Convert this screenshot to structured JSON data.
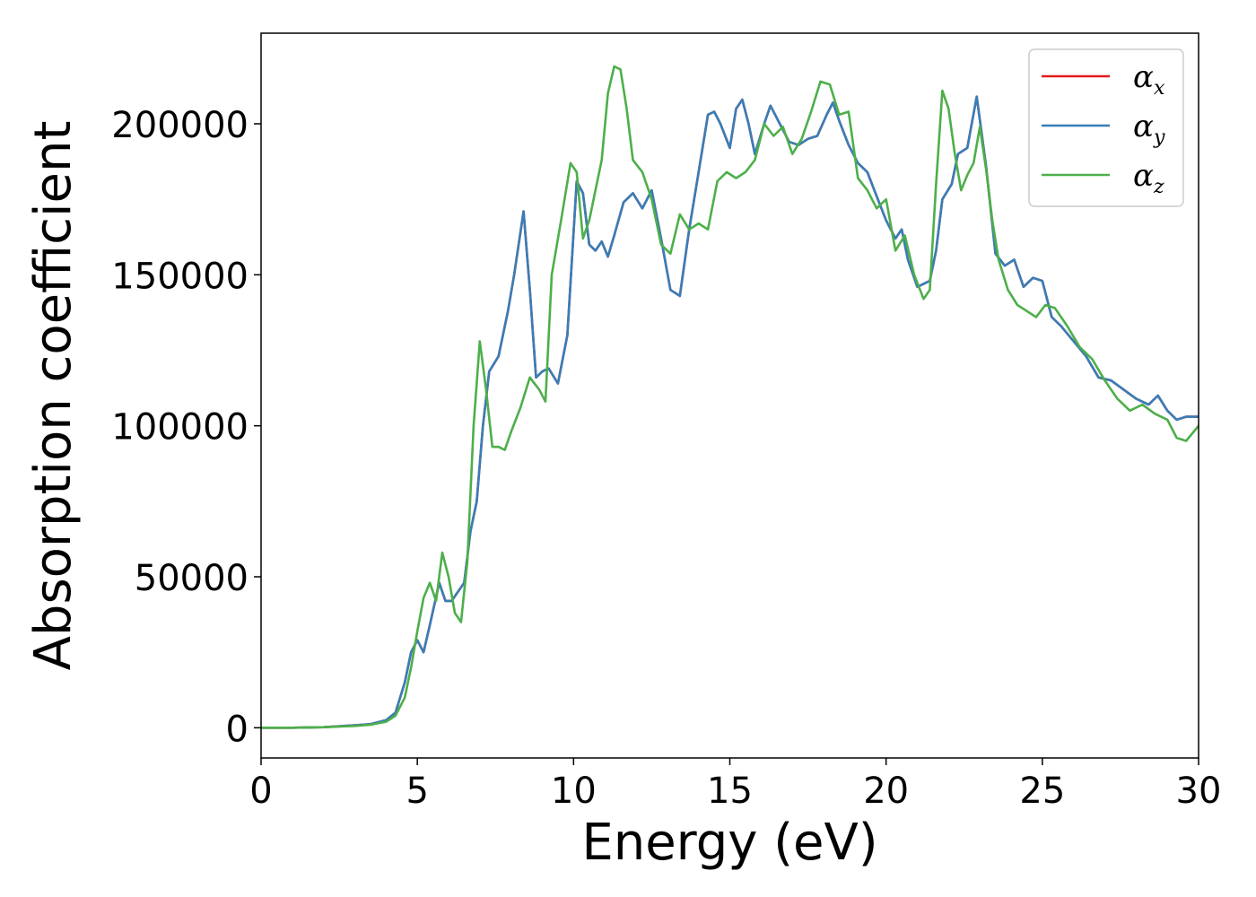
{
  "chart_data": {
    "type": "line",
    "xlabel": "Energy (eV)",
    "ylabel": "Absorption coefficient",
    "xlim": [
      0,
      30
    ],
    "ylim": [
      -10000,
      230000
    ],
    "x_ticks": [
      0,
      5,
      10,
      15,
      20,
      25,
      30
    ],
    "x_tick_labels": [
      "0",
      "5",
      "10",
      "15",
      "20",
      "25",
      "30"
    ],
    "y_ticks": [
      0,
      50000,
      100000,
      150000,
      200000
    ],
    "y_tick_labels": [
      "0",
      "50000",
      "100000",
      "150000",
      "200000"
    ],
    "grid": false,
    "legend_position": "top-right",
    "series": [
      {
        "name": "α",
        "subscript": "x",
        "color": "#e41a1c",
        "x": [
          0,
          1,
          2,
          3,
          3.5,
          4,
          4.3,
          4.6,
          4.8,
          5.0,
          5.2,
          5.4,
          5.7,
          5.9,
          6.1,
          6.3,
          6.5,
          6.7,
          6.9,
          7.1,
          7.3,
          7.6,
          7.9,
          8.1,
          8.4,
          8.6,
          8.8,
          9.0,
          9.2,
          9.5,
          9.8,
          10.1,
          10.3,
          10.5,
          10.7,
          10.9,
          11.1,
          11.3,
          11.6,
          11.9,
          12.2,
          12.5,
          12.8,
          13.1,
          13.4,
          13.7,
          14.0,
          14.3,
          14.5,
          14.7,
          15.0,
          15.2,
          15.4,
          15.6,
          15.8,
          16.1,
          16.3,
          16.6,
          16.9,
          17.2,
          17.5,
          17.8,
          18.1,
          18.3,
          18.5,
          18.8,
          19.1,
          19.4,
          19.7,
          20.0,
          20.3,
          20.5,
          20.7,
          21.0,
          21.2,
          21.4,
          21.6,
          21.8,
          22.1,
          22.3,
          22.6,
          22.9,
          23.2,
          23.5,
          23.8,
          24.1,
          24.4,
          24.7,
          25.0,
          25.3,
          25.6,
          26.0,
          26.4,
          26.8,
          27.2,
          27.6,
          28.0,
          28.4,
          28.7,
          29.0,
          29.3,
          29.6,
          30.0
        ],
        "y": [
          0,
          0,
          200,
          800,
          1200,
          2500,
          5000,
          15000,
          25000,
          29000,
          25000,
          34000,
          48000,
          42000,
          42000,
          45000,
          48000,
          65000,
          75000,
          100000,
          118000,
          123000,
          138000,
          150000,
          171000,
          145000,
          116000,
          118000,
          119000,
          114000,
          130000,
          181000,
          177000,
          160000,
          158000,
          161000,
          156000,
          163000,
          174000,
          177000,
          172000,
          178000,
          162000,
          145000,
          143000,
          165000,
          184000,
          203000,
          204000,
          200000,
          192000,
          205000,
          208000,
          200000,
          190000,
          200000,
          206000,
          200000,
          194000,
          193000,
          195000,
          196000,
          203000,
          207000,
          201000,
          193000,
          187000,
          184000,
          176000,
          168000,
          162000,
          165000,
          155000,
          146000,
          147000,
          148000,
          158000,
          175000,
          180000,
          190000,
          192000,
          209000,
          186000,
          157000,
          153000,
          155000,
          146000,
          149000,
          148000,
          136000,
          133000,
          128000,
          123000,
          116000,
          115000,
          112000,
          109000,
          107000,
          110000,
          105000,
          102000,
          103000,
          103000
        ]
      },
      {
        "name": "α",
        "subscript": "y",
        "color": "#377eb8",
        "x": [
          0,
          1,
          2,
          3,
          3.5,
          4,
          4.3,
          4.6,
          4.8,
          5.0,
          5.2,
          5.4,
          5.7,
          5.9,
          6.1,
          6.3,
          6.5,
          6.7,
          6.9,
          7.1,
          7.3,
          7.6,
          7.9,
          8.1,
          8.4,
          8.6,
          8.8,
          9.0,
          9.2,
          9.5,
          9.8,
          10.1,
          10.3,
          10.5,
          10.7,
          10.9,
          11.1,
          11.3,
          11.6,
          11.9,
          12.2,
          12.5,
          12.8,
          13.1,
          13.4,
          13.7,
          14.0,
          14.3,
          14.5,
          14.7,
          15.0,
          15.2,
          15.4,
          15.6,
          15.8,
          16.1,
          16.3,
          16.6,
          16.9,
          17.2,
          17.5,
          17.8,
          18.1,
          18.3,
          18.5,
          18.8,
          19.1,
          19.4,
          19.7,
          20.0,
          20.3,
          20.5,
          20.7,
          21.0,
          21.2,
          21.4,
          21.6,
          21.8,
          22.1,
          22.3,
          22.6,
          22.9,
          23.2,
          23.5,
          23.8,
          24.1,
          24.4,
          24.7,
          25.0,
          25.3,
          25.6,
          26.0,
          26.4,
          26.8,
          27.2,
          27.6,
          28.0,
          28.4,
          28.7,
          29.0,
          29.3,
          29.6,
          30.0
        ],
        "y": [
          0,
          0,
          200,
          800,
          1200,
          2500,
          5000,
          15000,
          25000,
          29000,
          25000,
          34000,
          48000,
          42000,
          42000,
          45000,
          48000,
          65000,
          75000,
          100000,
          118000,
          123000,
          138000,
          150000,
          171000,
          145000,
          116000,
          118000,
          119000,
          114000,
          130000,
          181000,
          177000,
          160000,
          158000,
          161000,
          156000,
          163000,
          174000,
          177000,
          172000,
          178000,
          162000,
          145000,
          143000,
          165000,
          184000,
          203000,
          204000,
          200000,
          192000,
          205000,
          208000,
          200000,
          190000,
          200000,
          206000,
          200000,
          194000,
          193000,
          195000,
          196000,
          203000,
          207000,
          201000,
          193000,
          187000,
          184000,
          176000,
          168000,
          162000,
          165000,
          155000,
          146000,
          147000,
          148000,
          158000,
          175000,
          180000,
          190000,
          192000,
          209000,
          186000,
          157000,
          153000,
          155000,
          146000,
          149000,
          148000,
          136000,
          133000,
          128000,
          123000,
          116000,
          115000,
          112000,
          109000,
          107000,
          110000,
          105000,
          102000,
          103000,
          103000
        ]
      },
      {
        "name": "α",
        "subscript": "z",
        "color": "#4daf4a",
        "x": [
          0,
          1,
          2,
          3,
          3.5,
          4,
          4.3,
          4.6,
          4.8,
          5.0,
          5.2,
          5.4,
          5.6,
          5.8,
          6.0,
          6.2,
          6.4,
          6.6,
          6.8,
          7.0,
          7.2,
          7.4,
          7.6,
          7.8,
          8.0,
          8.3,
          8.6,
          8.9,
          9.1,
          9.3,
          9.6,
          9.9,
          10.1,
          10.3,
          10.5,
          10.7,
          10.9,
          11.1,
          11.3,
          11.5,
          11.7,
          11.9,
          12.2,
          12.5,
          12.8,
          13.1,
          13.4,
          13.7,
          14.0,
          14.3,
          14.6,
          14.9,
          15.2,
          15.5,
          15.8,
          16.1,
          16.4,
          16.7,
          17.0,
          17.3,
          17.6,
          17.9,
          18.2,
          18.5,
          18.8,
          19.1,
          19.4,
          19.7,
          20.0,
          20.3,
          20.6,
          20.9,
          21.2,
          21.4,
          21.6,
          21.8,
          22.0,
          22.2,
          22.4,
          22.6,
          22.8,
          23.0,
          23.2,
          23.4,
          23.6,
          23.9,
          24.2,
          24.5,
          24.8,
          25.1,
          25.4,
          25.8,
          26.2,
          26.6,
          27.0,
          27.4,
          27.8,
          28.2,
          28.6,
          29.0,
          29.3,
          29.6,
          30.0
        ],
        "y": [
          0,
          0,
          200,
          600,
          1000,
          2000,
          4000,
          10000,
          20000,
          32000,
          43000,
          48000,
          42000,
          58000,
          50000,
          38000,
          35000,
          55000,
          100000,
          128000,
          112000,
          93000,
          93000,
          92000,
          98000,
          106000,
          116000,
          112000,
          108000,
          150000,
          168000,
          187000,
          184000,
          162000,
          168000,
          178000,
          188000,
          210000,
          219000,
          218000,
          205000,
          188000,
          184000,
          175000,
          160000,
          157000,
          170000,
          165000,
          167000,
          165000,
          181000,
          184000,
          182000,
          184000,
          188000,
          200000,
          196000,
          199000,
          190000,
          195000,
          204000,
          214000,
          213000,
          203000,
          204000,
          182000,
          178000,
          172000,
          175000,
          158000,
          163000,
          150000,
          142000,
          145000,
          180000,
          211000,
          205000,
          190000,
          178000,
          183000,
          187000,
          199000,
          185000,
          168000,
          155000,
          145000,
          140000,
          138000,
          136000,
          140000,
          139000,
          133000,
          126000,
          122000,
          115000,
          109000,
          105000,
          107000,
          104000,
          102000,
          96000,
          95000,
          100000
        ]
      }
    ]
  }
}
